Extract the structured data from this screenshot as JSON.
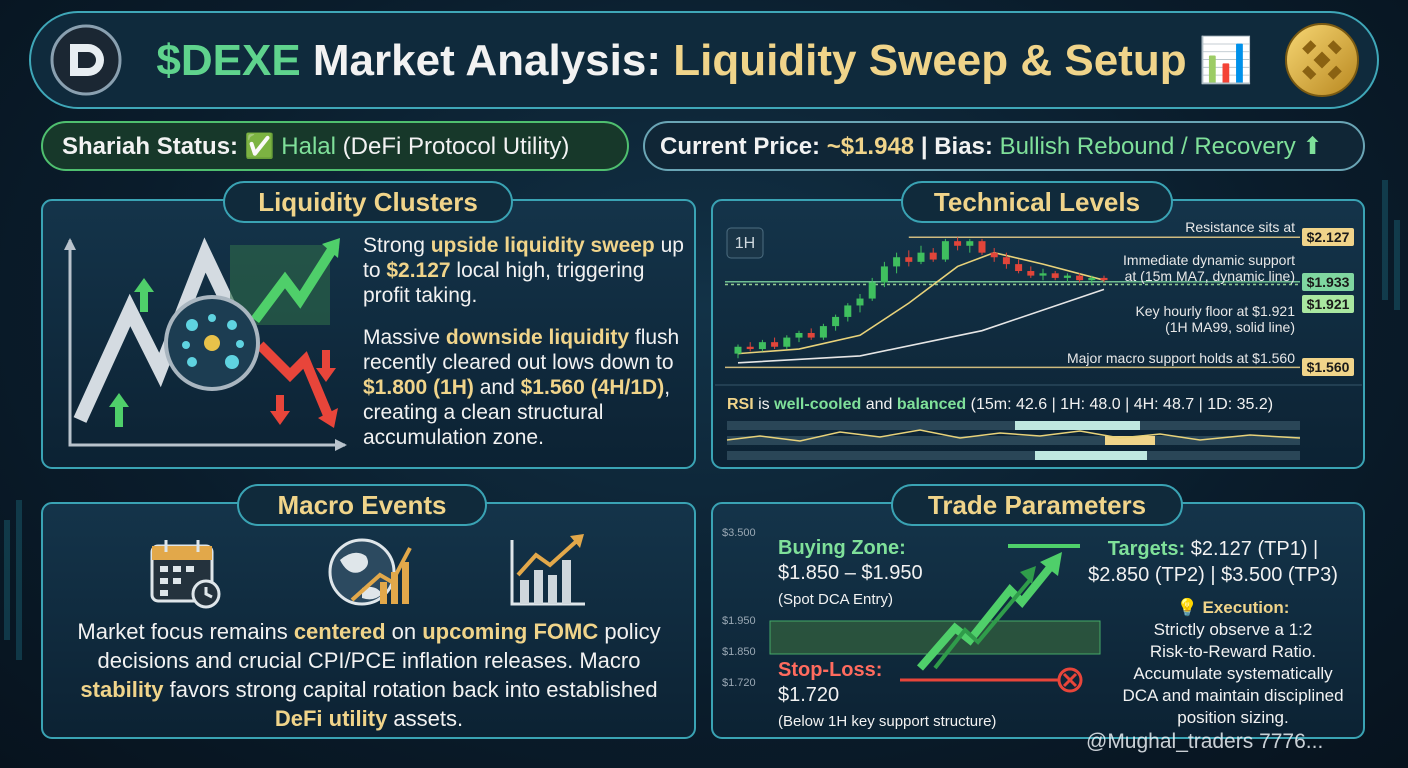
{
  "header": {
    "brand": "$DEXE",
    "title": "Market Analysis:",
    "highlight": "Liquidity Sweep & Setup",
    "icon": "📊"
  },
  "status": {
    "shariah_label": "Shariah Status:",
    "shariah_icon": "✅",
    "shariah_value": "Halal",
    "shariah_note": "(DeFi Protocol Utility)",
    "price_label": "Current Price:",
    "price": "~$1.948",
    "separator": "|",
    "bias_label": "Bias:",
    "bias": "Bullish Rebound / Recovery",
    "bias_icon": "⬆"
  },
  "liquidity": {
    "title": "Liquidity Clusters",
    "paragraphs": [
      [
        "Strong ",
        "upside liquidity sweep",
        " up to ",
        "$2.127",
        " local high, triggering profit taking."
      ],
      [
        "Massive ",
        "downside liquidity",
        " flush recently cleared out lows down to ",
        "$1.800 (1H)",
        " and ",
        "$1.560 (4H/1D)",
        ", creating a clean structural accumulation zone."
      ]
    ]
  },
  "technical": {
    "title": "Technical Levels",
    "timeframe": "1H",
    "chart": {
      "ylim": [
        1.54,
        2.15
      ],
      "candles": [
        [
          1.62,
          1.66,
          1.6,
          1.65
        ],
        [
          1.65,
          1.67,
          1.63,
          1.64
        ],
        [
          1.64,
          1.68,
          1.63,
          1.67
        ],
        [
          1.67,
          1.69,
          1.64,
          1.65
        ],
        [
          1.65,
          1.7,
          1.64,
          1.69
        ],
        [
          1.69,
          1.72,
          1.67,
          1.71
        ],
        [
          1.71,
          1.73,
          1.68,
          1.69
        ],
        [
          1.69,
          1.75,
          1.68,
          1.74
        ],
        [
          1.74,
          1.79,
          1.72,
          1.78
        ],
        [
          1.78,
          1.84,
          1.76,
          1.83
        ],
        [
          1.83,
          1.88,
          1.8,
          1.86
        ],
        [
          1.86,
          1.95,
          1.85,
          1.93
        ],
        [
          1.93,
          2.02,
          1.91,
          2.0
        ],
        [
          2.0,
          2.06,
          1.97,
          2.04
        ],
        [
          2.04,
          2.07,
          2.0,
          2.02
        ],
        [
          2.02,
          2.09,
          2.01,
          2.06
        ],
        [
          2.06,
          2.08,
          2.02,
          2.03
        ],
        [
          2.03,
          2.12,
          2.02,
          2.11
        ],
        [
          2.11,
          2.127,
          2.07,
          2.09
        ],
        [
          2.09,
          2.12,
          2.06,
          2.11
        ],
        [
          2.11,
          2.12,
          2.05,
          2.06
        ],
        [
          2.06,
          2.08,
          2.02,
          2.04
        ],
        [
          2.04,
          2.06,
          1.99,
          2.01
        ],
        [
          2.01,
          2.03,
          1.97,
          1.98
        ],
        [
          1.98,
          2.0,
          1.95,
          1.96
        ],
        [
          1.96,
          1.99,
          1.94,
          1.97
        ],
        [
          1.97,
          1.98,
          1.94,
          1.95
        ],
        [
          1.95,
          1.97,
          1.93,
          1.96
        ],
        [
          1.96,
          1.97,
          1.93,
          1.94
        ],
        [
          1.94,
          1.96,
          1.92,
          1.95
        ],
        [
          1.95,
          1.96,
          1.93,
          1.94
        ]
      ],
      "ma7": {
        "x": [
          0,
          5,
          10,
          14,
          18,
          21,
          25,
          30
        ],
        "values": [
          1.62,
          1.64,
          1.7,
          1.84,
          2.0,
          2.06,
          2.01,
          1.94
        ],
        "color": "#e8d27a"
      },
      "ma99": {
        "x": [
          0,
          10,
          20,
          30
        ],
        "values": [
          1.58,
          1.61,
          1.72,
          1.9
        ],
        "color": "#e6e6e6"
      }
    },
    "levels": [
      {
        "lines": [
          "Resistance sits at"
        ],
        "value": 2.127,
        "tag": "$2.127",
        "color": "#f0d48a"
      },
      {
        "lines": [
          "Immediate dynamic support",
          "at (15m MA7, dynamic line)"
        ],
        "value": 1.933,
        "tag": "$1.933",
        "color": "#7fd6a0"
      },
      {
        "lines": [
          "Key hourly floor at $1.921",
          "(1H MA99, solid line)"
        ],
        "value": 1.921,
        "tag": "$1.921",
        "color": "#a9e7a0"
      },
      {
        "lines": [
          "Major macro support holds at $1.560"
        ],
        "value": 1.56,
        "tag": "$1.560",
        "color": "#f0d48a"
      }
    ],
    "rsi": [
      "RSI",
      " is ",
      "well-cooled",
      " and ",
      "balanced",
      " (15m: 42.6 | 1H: 48.0 | 4H: 48.7 | 1D: 35.2)"
    ]
  },
  "macro": {
    "title": "Macro Events",
    "text": [
      "Market focus remains ",
      "centered",
      " on ",
      "upcoming FOMC",
      " policy decisions and crucial CPI/PCE inflation releases. Macro ",
      "stability",
      " favors strong capital rotation back into established ",
      "DeFi utility",
      " assets."
    ]
  },
  "trade": {
    "title": "Trade Parameters",
    "axis_labels": [
      "$3.500",
      "$1.950",
      "$1.850",
      "$1.720"
    ],
    "buying": {
      "label": "Buying Zone:",
      "range": "$1.850 – $1.950",
      "note": "(Spot DCA Entry)"
    },
    "stop": {
      "label": "Stop-Loss:",
      "price": "$1.720",
      "note": "(Below 1H key support structure)"
    },
    "targets": {
      "label": "Targets:",
      "line1": "$2.127 (TP1) |",
      "line2": "$2.850 (TP2) | $3.500 (TP3)"
    },
    "execution": {
      "icon": "💡",
      "label": "Execution:",
      "lines": [
        "Strictly observe a 1:2",
        "Risk-to-Reward Ratio.",
        "Accumulate systematically",
        "DCA and maintain disciplined",
        "position sizing."
      ]
    }
  },
  "watermark": "@Mughal_traders 7776..."
}
